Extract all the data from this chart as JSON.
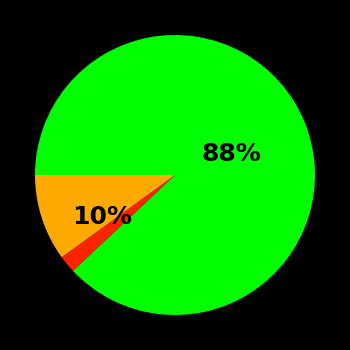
{
  "slices": [
    88,
    2,
    10
  ],
  "colors": [
    "#00ff00",
    "#ff2200",
    "#ffaa00"
  ],
  "labels": [
    "88%",
    "",
    "10%"
  ],
  "background_color": "#000000",
  "label_fontsize": 18,
  "label_fontweight": "bold",
  "startangle": 180,
  "counterclock": false
}
